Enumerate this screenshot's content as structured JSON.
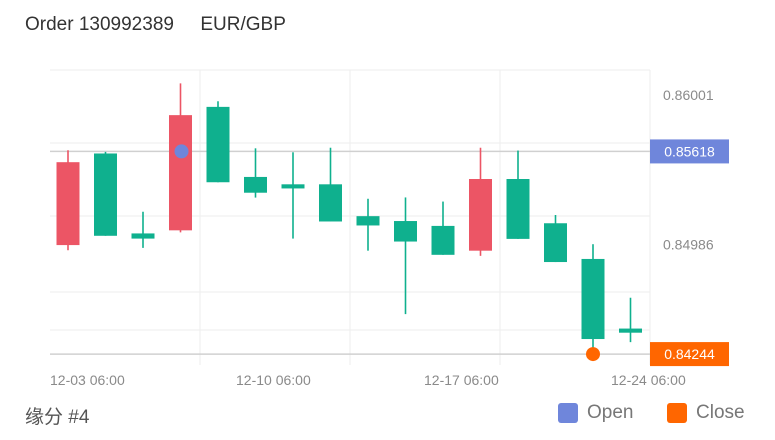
{
  "header": {
    "order_label": "Order 130992389",
    "pair": "EUR/GBP"
  },
  "footer": {
    "label": "缘分 #4"
  },
  "legend": {
    "open_label": "Open",
    "close_label": "Close"
  },
  "colors": {
    "up": "#0fb08e",
    "down": "#ec5565",
    "open_marker": "#6f86db",
    "close_marker": "#ff6600",
    "grid": "#eeeeee",
    "axis_text": "#8a8a8a"
  },
  "chart_data": {
    "type": "candlestick",
    "title": "",
    "x_tick_labels": [
      "12-03 06:00",
      "12-10 06:00",
      "12-17 06:00",
      "12-24 06:00"
    ],
    "y_tick_labels": [
      "0.86001",
      "0.84986"
    ],
    "ylim": [
      0.8417,
      0.8617
    ],
    "grid": true,
    "candles": [
      {
        "open": 0.85545,
        "high": 0.85626,
        "low": 0.84948,
        "close": 0.84983
      },
      {
        "open": 0.85046,
        "high": 0.85615,
        "low": 0.85046,
        "close": 0.85604
      },
      {
        "open": 0.85027,
        "high": 0.85209,
        "low": 0.84964,
        "close": 0.85062
      },
      {
        "open": 0.85864,
        "high": 0.86079,
        "low": 0.85069,
        "close": 0.85083
      },
      {
        "open": 0.85409,
        "high": 0.85958,
        "low": 0.85409,
        "close": 0.8592
      },
      {
        "open": 0.85338,
        "high": 0.85639,
        "low": 0.85305,
        "close": 0.85445
      },
      {
        "open": 0.85367,
        "high": 0.85612,
        "low": 0.85027,
        "close": 0.85395
      },
      {
        "open": 0.85143,
        "high": 0.85643,
        "low": 0.85143,
        "close": 0.85395
      },
      {
        "open": 0.85116,
        "high": 0.85297,
        "low": 0.84945,
        "close": 0.85179
      },
      {
        "open": 0.85007,
        "high": 0.85306,
        "low": 0.84515,
        "close": 0.85146
      },
      {
        "open": 0.84917,
        "high": 0.85278,
        "low": 0.84917,
        "close": 0.85113
      },
      {
        "open": 0.85431,
        "high": 0.85643,
        "low": 0.8491,
        "close": 0.84945
      },
      {
        "open": 0.85025,
        "high": 0.85624,
        "low": 0.85025,
        "close": 0.85431
      },
      {
        "open": 0.84868,
        "high": 0.85187,
        "low": 0.84868,
        "close": 0.85131
      },
      {
        "open": 0.84346,
        "high": 0.84989,
        "low": 0.84207,
        "close": 0.84889
      },
      {
        "open": 0.84389,
        "high": 0.84626,
        "low": 0.84325,
        "close": 0.84417
      }
    ],
    "open_order": {
      "candle": 3,
      "price": 0.85618,
      "label": "0.85618"
    },
    "close_order": {
      "candle": 14,
      "price": 0.84244,
      "label": "0.84244"
    }
  }
}
